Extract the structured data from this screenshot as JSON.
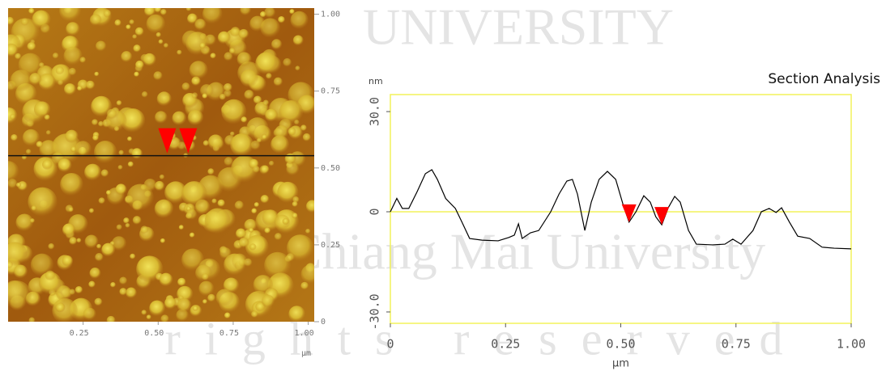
{
  "watermark": [
    "UNIVERSITY",
    "Chiang Mai University",
    "rights reserved"
  ],
  "chart_data": [
    {
      "type": "image",
      "xlabel": "µm",
      "xlim": [
        0,
        1.02
      ],
      "ylim": [
        0,
        1.02
      ],
      "xticks": [
        {
          "value": 0.25,
          "label": "0.25"
        },
        {
          "value": 0.5,
          "label": "0.50"
        },
        {
          "value": 0.75,
          "label": "0.75"
        },
        {
          "value": 1,
          "label": "1.00"
        }
      ],
      "yticks": [
        {
          "value": 1,
          "label": "1.00"
        },
        {
          "value": 0.75,
          "label": "0.75"
        },
        {
          "value": 0.5,
          "label": "0.50"
        },
        {
          "value": 0.25,
          "label": "0.25"
        },
        0
      ],
      "section_y": 0.54,
      "cursor_x": [
        0.53,
        0.6
      ],
      "cursor_color": "#ff0000"
    },
    {
      "type": "line",
      "title": "Section Analysis",
      "ylabel": "nm",
      "xlabel": "µm",
      "xlim": [
        0,
        1
      ],
      "ylim": [
        -33.4,
        35.1
      ],
      "xticks": [
        0,
        {
          "value": 0.25,
          "label": "0.25"
        },
        {
          "value": 0.5,
          "label": "0.50"
        },
        {
          "value": 0.75,
          "label": "0.75"
        },
        {
          "value": 1,
          "label": "1.00"
        }
      ],
      "yticks": [
        {
          "value": -30,
          "label": "-30.0"
        },
        0,
        {
          "value": 30,
          "label": "30.0"
        }
      ],
      "color": "#000000",
      "frame_color": "#f2f25a",
      "cursor_color": "#ff0000",
      "x": [
        0,
        0.014,
        0.026,
        0.04,
        0.058,
        0.076,
        0.09,
        0.102,
        0.12,
        0.141,
        0.155,
        0.172,
        0.199,
        0.234,
        0.257,
        0.269,
        0.278,
        0.286,
        0.304,
        0.322,
        0.348,
        0.366,
        0.383,
        0.395,
        0.406,
        0.422,
        0.436,
        0.453,
        0.471,
        0.489,
        0.506,
        0.518,
        0.533,
        0.55,
        0.564,
        0.576,
        0.589,
        0.603,
        0.617,
        0.629,
        0.647,
        0.664,
        0.699,
        0.726,
        0.743,
        0.761,
        0.787,
        0.805,
        0.822,
        0.837,
        0.849,
        0.866,
        0.884,
        0.91,
        0.937,
        0.963,
        1
      ],
      "values": [
        0,
        4,
        1,
        1,
        6,
        11.4,
        12.6,
        9.7,
        4,
        1,
        -3,
        -8,
        -8.5,
        -8.7,
        -7.7,
        -7,
        -3.6,
        -8,
        -6.3,
        -5.6,
        0,
        5.3,
        9.2,
        9.7,
        5.3,
        -5.6,
        2.9,
        9.7,
        12.1,
        9.7,
        1.7,
        -3.1,
        0,
        4.8,
        2.9,
        -1.5,
        -3.9,
        1.2,
        4.6,
        2.9,
        -5.6,
        -9.7,
        -9.9,
        -9.7,
        -8.2,
        -9.7,
        -5.6,
        0,
        1,
        -0.2,
        1.2,
        -3.1,
        -7.3,
        -8,
        -10.6,
        -10.9,
        -11.1
      ],
      "cursor_x": [
        0.518,
        0.589
      ]
    }
  ]
}
